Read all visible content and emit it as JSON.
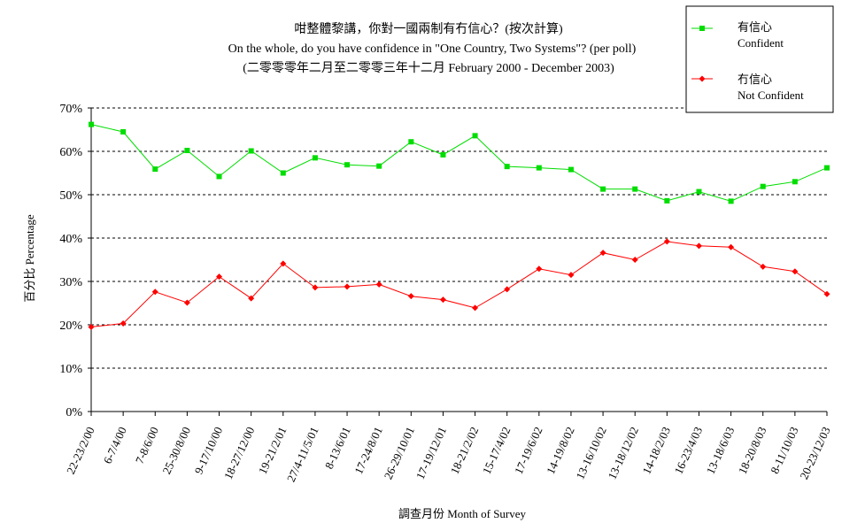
{
  "chart_data": {
    "type": "line",
    "title": [
      "咁整體黎講，你對一國兩制有冇信心？(按次計算)",
      "On the whole, do you have confidence in \"One Country, Two Systems\"? (per poll)",
      "(二零零零年二月至二零零三年十二月 February 2000 - December 2003)"
    ],
    "xlabel": "調查月份 Month of Survey",
    "ylabel": "百分比 Percentage",
    "ylim": [
      0,
      70
    ],
    "yticks": [
      "0%",
      "10%",
      "20%",
      "30%",
      "40%",
      "50%",
      "60%",
      "70%"
    ],
    "ytick_values": [
      0,
      10,
      20,
      30,
      40,
      50,
      60,
      70
    ],
    "grid": true,
    "legend_position": "top-right",
    "categories": [
      "22-23/2/00",
      "6-7/4/00",
      "7-8/6/00",
      "25-30/8/00",
      "9-17/10/00",
      "18-27/12/00",
      "19-21/2/01",
      "27/4-11/5/01",
      "8-13/6/01",
      "17-24/8/01",
      "26-29/10/01",
      "17-19/12/01",
      "18-21/2/02",
      "15-17/4/02",
      "17-19/6/02",
      "14-19/8/02",
      "13-16/10/02",
      "13-18/12/02",
      "14-18/2/03",
      "16-23/4/03",
      "13-18/6/03",
      "18-20/8/03",
      "8-11/10/03",
      "20-23/12/03"
    ],
    "series": [
      {
        "name": [
          "有信心",
          "Confident"
        ],
        "color": "#00dd00",
        "marker": "square",
        "values": [
          66.2,
          64.5,
          55.9,
          60.2,
          54.2,
          60.1,
          55.0,
          58.5,
          56.9,
          56.6,
          62.2,
          59.2,
          63.6,
          56.5,
          56.2,
          55.8,
          51.3,
          51.3,
          48.6,
          50.7,
          48.5,
          51.9,
          53.0,
          56.2
        ]
      },
      {
        "name": [
          "冇信心",
          "Not Confident"
        ],
        "color": "#ff0000",
        "marker": "diamond",
        "values": [
          19.5,
          20.3,
          27.6,
          25.1,
          31.1,
          26.1,
          34.1,
          28.6,
          28.8,
          29.3,
          26.6,
          25.8,
          23.9,
          28.2,
          32.9,
          31.5,
          36.6,
          35.0,
          39.2,
          38.2,
          37.9,
          33.4,
          32.3,
          27.1
        ]
      }
    ]
  }
}
